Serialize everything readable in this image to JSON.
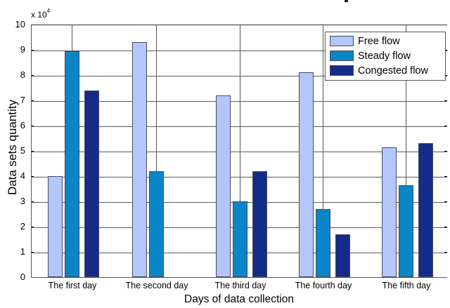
{
  "chart_data": {
    "type": "bar",
    "title": "",
    "xlabel": "Days of data collection",
    "ylabel": "Data sets quantity",
    "y_exponent_label": "x 10",
    "y_exponent_power": "4",
    "ylim": [
      0,
      10
    ],
    "yticks": [
      "0",
      "1",
      "2",
      "3",
      "4",
      "5",
      "6",
      "7",
      "8",
      "9",
      "10"
    ],
    "grid": true,
    "legend_position": "upper right",
    "categories": [
      "The first day",
      "The second day",
      "The third day",
      "The fourth day",
      "The fifth day"
    ],
    "series": [
      {
        "name": "Free flow",
        "color": "#b3c7fd",
        "values": [
          4.0,
          9.3,
          7.2,
          8.1,
          5.15
        ]
      },
      {
        "name": "Steady flow",
        "color": "#0b84c8",
        "values": [
          8.95,
          4.2,
          3.0,
          2.7,
          3.65
        ]
      },
      {
        "name": "Congested flow",
        "color": "#142b89",
        "values": [
          7.4,
          0,
          4.2,
          1.7,
          5.3
        ]
      }
    ],
    "units_note": "values in units of 10^4"
  }
}
